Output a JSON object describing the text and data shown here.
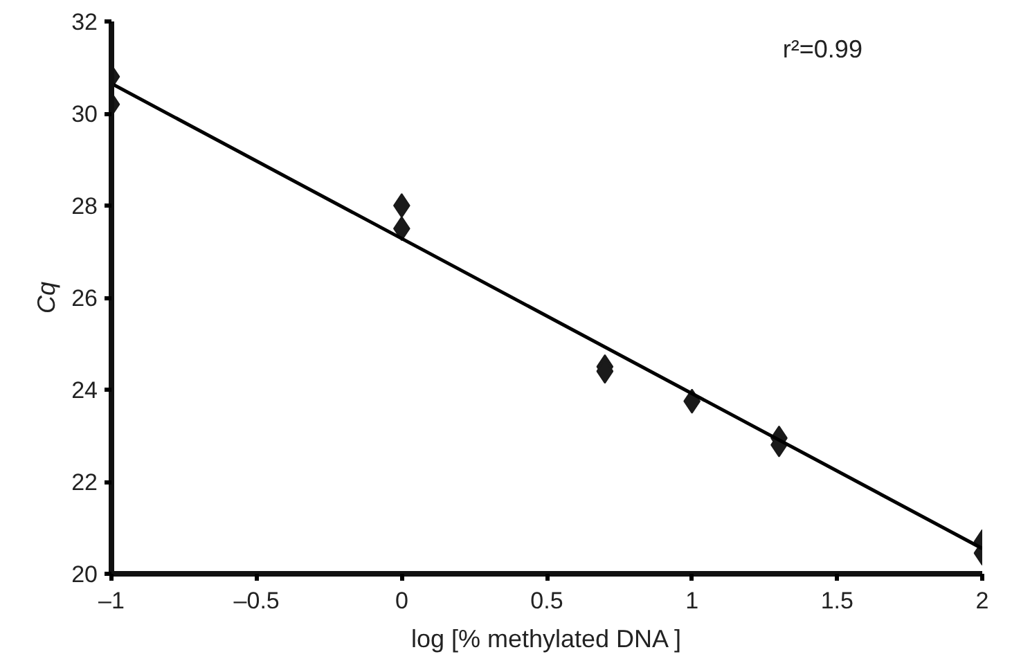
{
  "chart_data": {
    "type": "scatter",
    "xlabel": "log [% methylated DNA ]",
    "ylabel": "Cq",
    "xlim": [
      -1,
      2
    ],
    "ylim": [
      20,
      32
    ],
    "xticks": [
      {
        "value": -1,
        "label": "–1"
      },
      {
        "value": -0.5,
        "label": "–0.5"
      },
      0,
      0.5,
      1,
      1.5,
      2
    ],
    "yticks": [
      20,
      22,
      24,
      26,
      28,
      30,
      32
    ],
    "grid": false,
    "marker": "diamond",
    "annotations": [
      "r²=0.99"
    ],
    "series": [
      {
        "color": "#1a1a1a",
        "x": [
          -1,
          -1,
          0,
          0,
          0.7,
          0.7,
          1,
          1.3,
          1.3,
          2,
          2
        ],
        "values": [
          30.8,
          30.2,
          28.0,
          27.5,
          24.5,
          24.4,
          23.75,
          22.95,
          22.8,
          20.7,
          20.45
        ]
      },
      {
        "type": "line",
        "color": "#000000",
        "line_style": "solid",
        "marker": "none",
        "x": [
          -1,
          2
        ],
        "values": [
          30.65,
          20.55
        ]
      }
    ]
  }
}
